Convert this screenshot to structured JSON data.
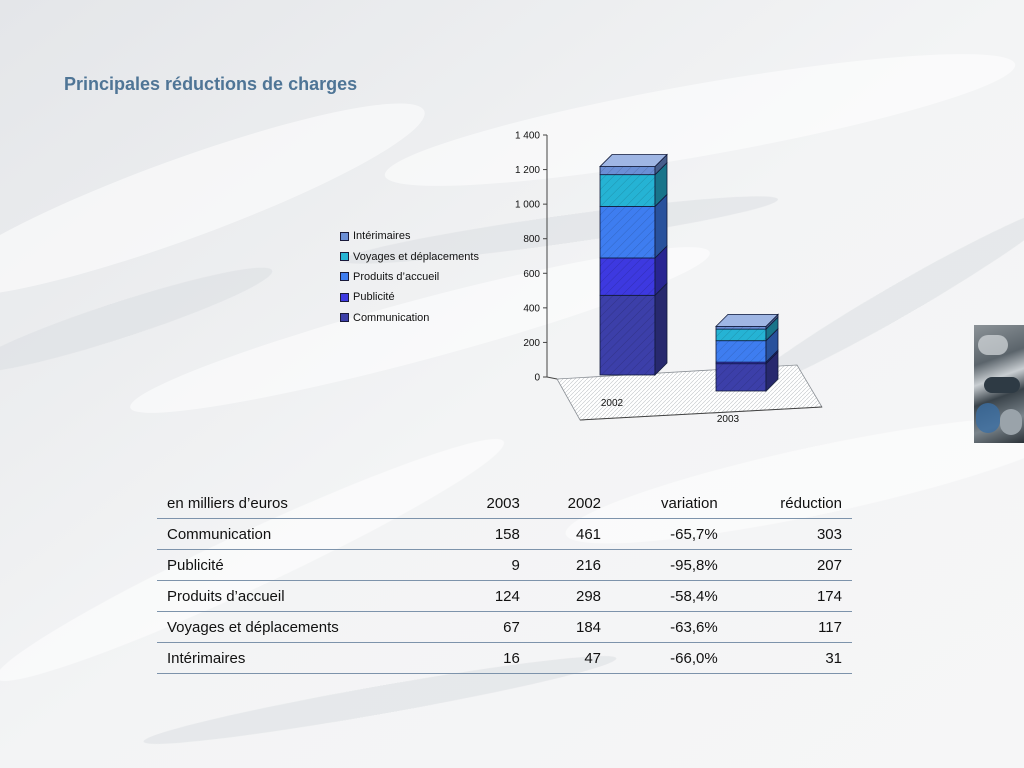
{
  "page": {
    "title": "Principales réductions de charges"
  },
  "chart_data": {
    "type": "bar",
    "stacked": true,
    "style": "3d",
    "categories": [
      "2002",
      "2003"
    ],
    "series": [
      {
        "name": "Communication",
        "values": [
          461,
          158
        ],
        "color": "#3c3fa9"
      },
      {
        "name": "Publicité",
        "values": [
          216,
          9
        ],
        "color": "#3d39e0"
      },
      {
        "name": "Produits d’accueil",
        "values": [
          298,
          124
        ],
        "color": "#3e7df0"
      },
      {
        "name": "Voyages et déplacements",
        "values": [
          184,
          67
        ],
        "color": "#25b3d4"
      },
      {
        "name": "Intérimaires",
        "values": [
          47,
          16
        ],
        "color": "#6b8fd6"
      }
    ],
    "legend_order": [
      "Intérimaires",
      "Voyages et déplacements",
      "Produits d’accueil",
      "Publicité",
      "Communication"
    ],
    "yticks": [
      "0",
      "200",
      "400",
      "600",
      "800",
      "1 000",
      "1 200",
      "1 400"
    ],
    "ylim": [
      0,
      1400
    ],
    "legend_position": "left",
    "grid": false
  },
  "table": {
    "headers": [
      "en milliers d’euros",
      "2003",
      "2002",
      "variation",
      "réduction"
    ],
    "rows": [
      [
        "Communication",
        "158",
        "461",
        "-65,7%",
        "303"
      ],
      [
        "Publicité",
        "9",
        "216",
        "-95,8%",
        "207"
      ],
      [
        "Produits d’accueil",
        "124",
        "298",
        "-58,4%",
        "174"
      ],
      [
        "Voyages et déplacements",
        "67",
        "184",
        "-63,6%",
        "117"
      ],
      [
        "Intérimaires",
        "16",
        "47",
        "-66,0%",
        "31"
      ]
    ]
  }
}
